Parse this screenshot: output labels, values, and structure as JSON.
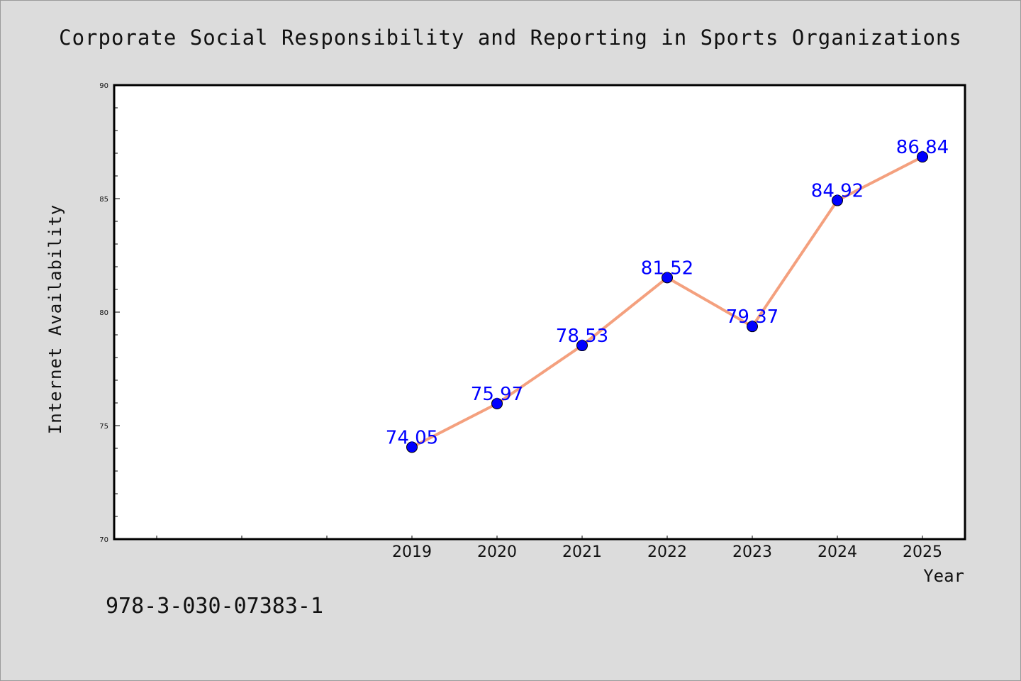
{
  "chart_data": {
    "type": "line",
    "title": "Corporate Social Responsibility and Reporting in Sports Organizations",
    "xlabel": "Year",
    "ylabel": "Internet Availability",
    "x": [
      "2019",
      "2020",
      "2021",
      "2022",
      "2023",
      "2024",
      "2025"
    ],
    "series": [
      {
        "values": [
          74.05,
          75.97,
          78.53,
          81.52,
          79.37,
          84.92,
          86.84
        ]
      }
    ],
    "data_labels": [
      "74.05",
      "75.97",
      "78.53",
      "81.52",
      "79.37",
      "84.92",
      "86.84"
    ],
    "ylim": [
      70,
      90
    ],
    "yticks": [
      "70",
      "75",
      "80",
      "85",
      "90"
    ],
    "grid": false,
    "colors": {
      "line": "#f4a07e",
      "marker": "#0000ff",
      "label": "#0000ff",
      "background": "#dcdcdc",
      "plot_bg": "#ffffff"
    }
  },
  "footer": {
    "text": "978-3-030-07383-1"
  }
}
